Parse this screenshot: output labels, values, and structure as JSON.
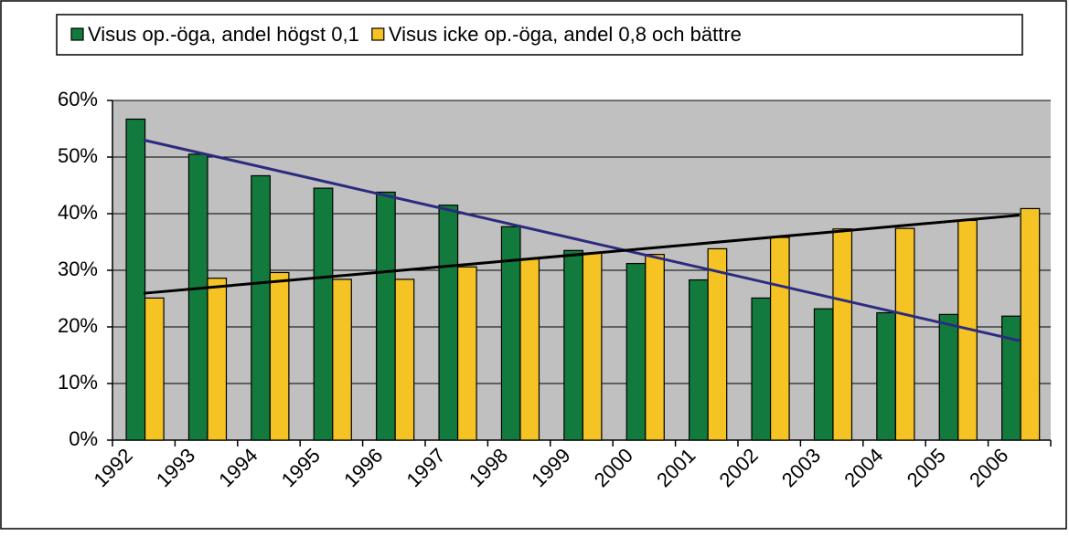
{
  "chart_data": {
    "type": "bar",
    "categories": [
      "1992",
      "1993",
      "1994",
      "1995",
      "1996",
      "1997",
      "1998",
      "1999",
      "2000",
      "2001",
      "2002",
      "2003",
      "2004",
      "2005",
      "2006"
    ],
    "series": [
      {
        "name": "Visus op.-öga, andel högst 0,1",
        "color": "#127a3c",
        "trendline_color": "#2b2b80",
        "values": [
          56.7,
          50.5,
          46.7,
          44.5,
          43.8,
          41.5,
          37.7,
          33.5,
          31.2,
          28.3,
          25.1,
          23.2,
          22.5,
          22.2,
          21.9
        ]
      },
      {
        "name": "Visus icke op.-öga, andel 0,8 och bättre",
        "color": "#f5c324",
        "trendline_color": "#000000",
        "values": [
          25.1,
          28.6,
          29.6,
          28.4,
          28.4,
          30.6,
          32.0,
          33.0,
          32.8,
          33.8,
          35.8,
          37.3,
          37.4,
          38.8,
          40.9
        ]
      }
    ],
    "ylim": [
      0,
      60
    ],
    "yticks": [
      {
        "value": 0,
        "label": "0%"
      },
      {
        "value": 10,
        "label": "10%"
      },
      {
        "value": 20,
        "label": "20%"
      },
      {
        "value": 30,
        "label": "30%"
      },
      {
        "value": 40,
        "label": "40%"
      },
      {
        "value": 50,
        "label": "50%"
      },
      {
        "value": 60,
        "label": "60%"
      }
    ],
    "grid": true,
    "trendline": true,
    "legend": "top"
  }
}
